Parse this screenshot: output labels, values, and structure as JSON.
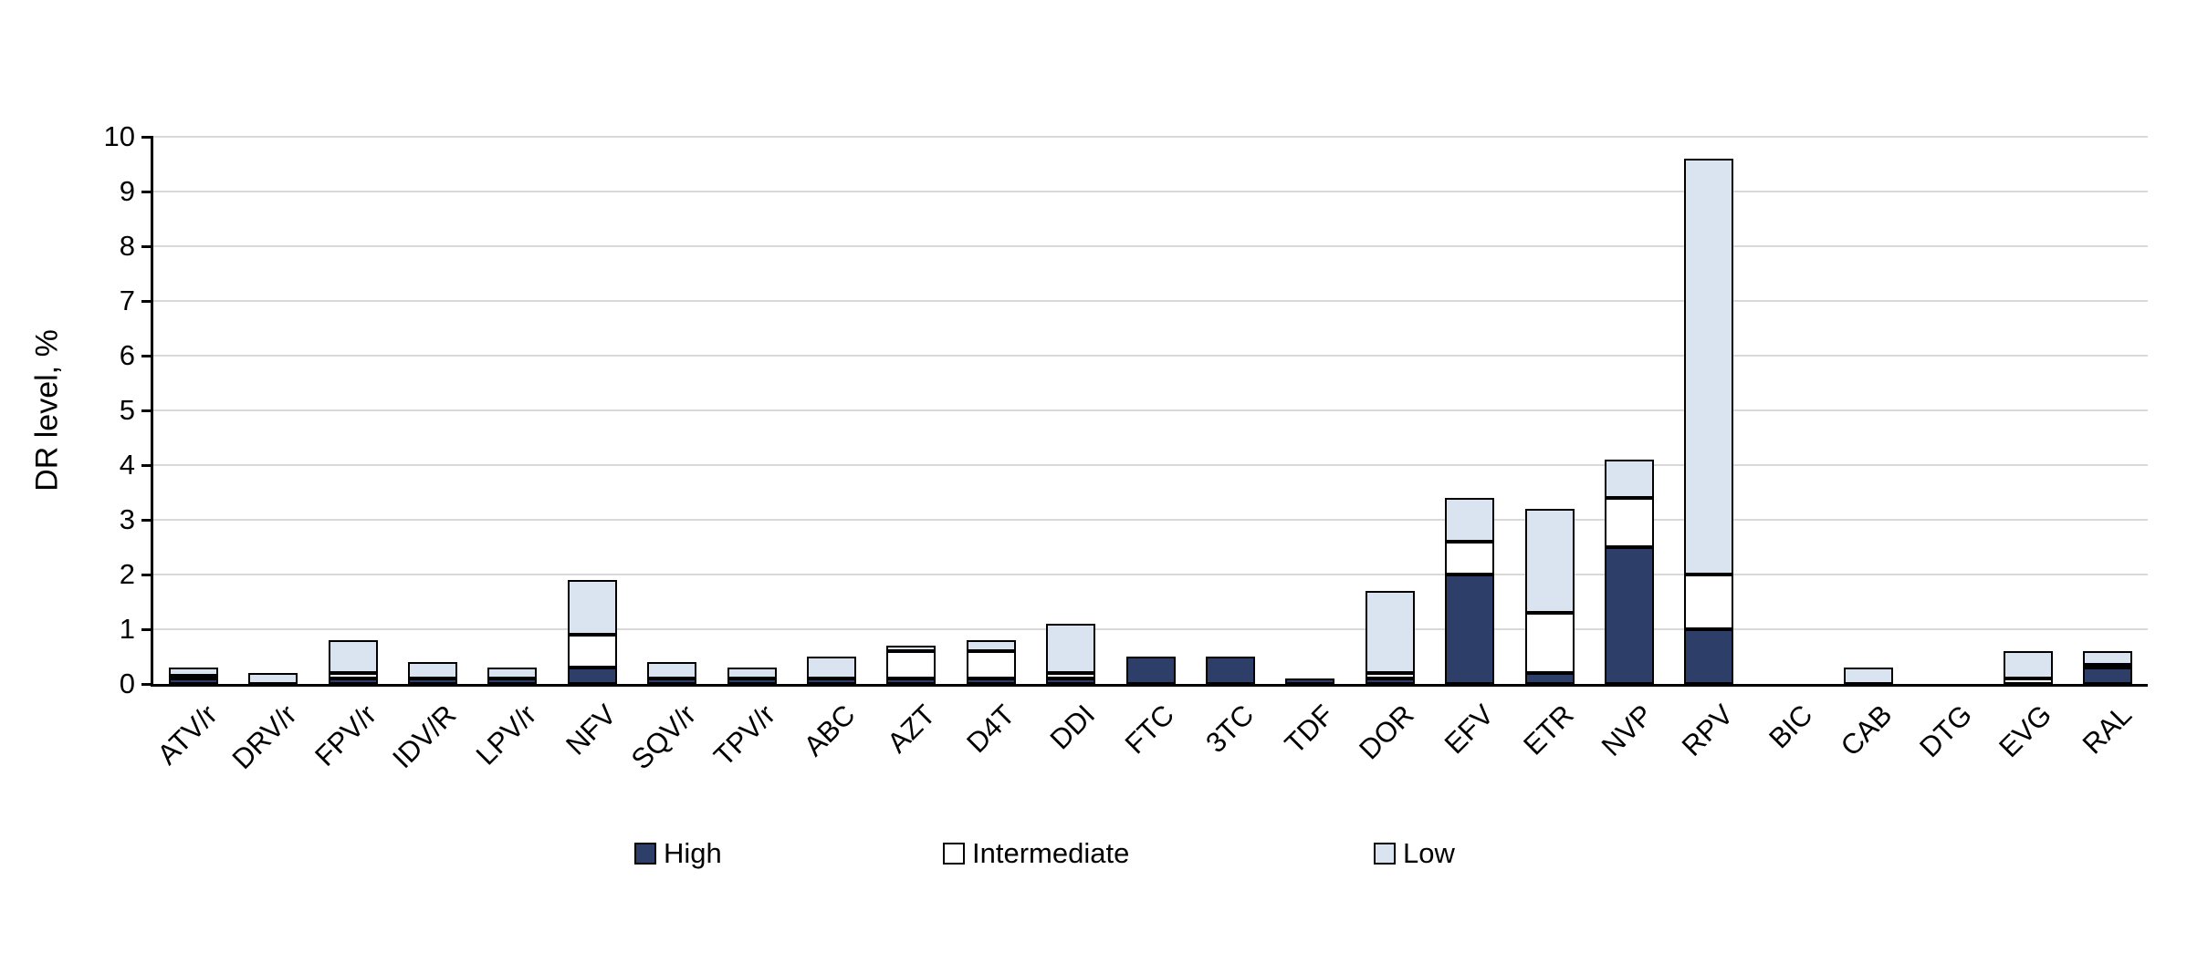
{
  "chart_data": {
    "type": "bar",
    "subtype": "stacked",
    "title": "",
    "xlabel": "",
    "ylabel": "DR level, %",
    "ylim": [
      0,
      10
    ],
    "ytick_step": 1,
    "grid": true,
    "legend_position": "bottom",
    "categories": [
      "ATV/r",
      "DRV/r",
      "FPV/r",
      "IDV/R",
      "LPV/r",
      "NFV",
      "SQV/r",
      "TPV/r",
      "ABC",
      "AZT",
      "D4T",
      "DDI",
      "FTC",
      "3TC",
      "TDF",
      "DOR",
      "EFV",
      "ETR",
      "NVP",
      "RPV",
      "BIC",
      "CAB",
      "DTG",
      "EVG",
      "RAL"
    ],
    "series": [
      {
        "name": "High",
        "color": "#2d3f68",
        "values": [
          0.1,
          0,
          0.1,
          0.1,
          0.1,
          0.3,
          0.1,
          0.1,
          0.1,
          0.1,
          0.1,
          0.1,
          0.5,
          0.5,
          0.1,
          0.1,
          2.0,
          0.2,
          2.5,
          1.0,
          0,
          0,
          0,
          0,
          0.3
        ]
      },
      {
        "name": "Intermediate",
        "color": "#ffffff",
        "values": [
          0.05,
          0,
          0.1,
          0,
          0,
          0.6,
          0,
          0,
          0,
          0.5,
          0.5,
          0.1,
          0,
          0,
          0,
          0.1,
          0.6,
          1.1,
          0.9,
          1.0,
          0,
          0,
          0,
          0.1,
          0.05
        ]
      },
      {
        "name": "Low",
        "color": "#dae3f0",
        "values": [
          0.15,
          0.2,
          0.6,
          0.3,
          0.2,
          1.0,
          0.3,
          0.2,
          0.4,
          0.1,
          0.2,
          0.9,
          0,
          0,
          0,
          1.5,
          0.8,
          1.9,
          0.7,
          7.6,
          0,
          0.3,
          0,
          0.5,
          0.25
        ]
      }
    ],
    "colors": {
      "high": "#2d3f68",
      "intermediate": "#ffffff",
      "low": "#dae3f0",
      "gridline": "#d9d9d9",
      "axis": "#000000"
    }
  }
}
